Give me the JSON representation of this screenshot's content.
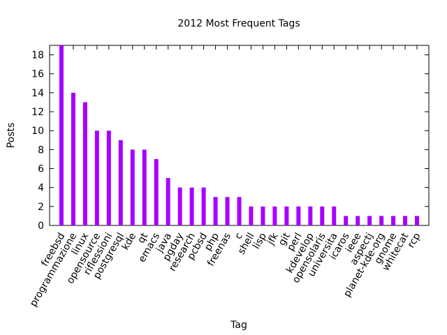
{
  "chart_data": {
    "type": "bar",
    "title": "2012 Most Frequent Tags",
    "x_label": "Tag",
    "y_label": "Posts",
    "categories": [
      "freebsd",
      "programmazione",
      "linux",
      "opensource",
      "riflessioni",
      "postgresql",
      "kde",
      "qt",
      "emacs",
      "java",
      "pgday",
      "research",
      "pcbsd",
      "php",
      "freenas",
      "c",
      "shell",
      "lisp",
      "jfk",
      "git",
      "perl",
      "kdevelop",
      "opensolaris",
      "universita",
      "icaros",
      "ieee",
      "aspectj",
      "planet-kde-org",
      "gnome",
      "whitecat",
      "rcp"
    ],
    "values": [
      19,
      14,
      13,
      10,
      10,
      9,
      8,
      8,
      7,
      5,
      4,
      4,
      4,
      3,
      3,
      3,
      2,
      2,
      2,
      2,
      2,
      2,
      2,
      2,
      1,
      1,
      1,
      1,
      1,
      1,
      1
    ],
    "color": "#a800ff",
    "ylim": [
      0,
      19
    ],
    "yticks": [
      0,
      2,
      4,
      6,
      8,
      10,
      12,
      14,
      16,
      18
    ],
    "grid": false
  }
}
